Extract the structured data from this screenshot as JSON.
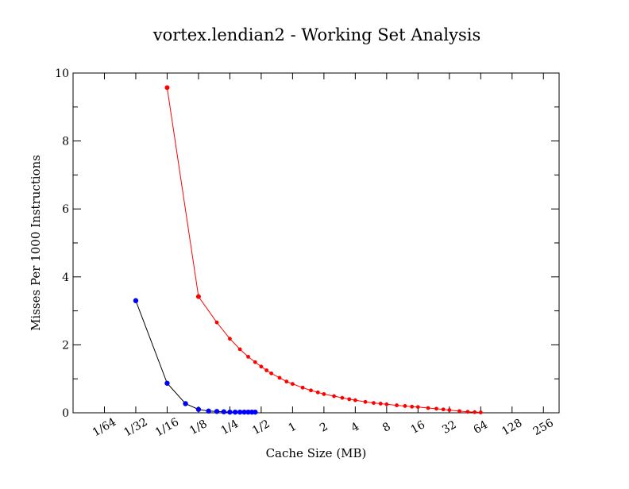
{
  "chart_data": {
    "type": "line",
    "title": "vortex.lendian2 - Working Set Analysis",
    "xlabel": "Cache Size (MB)",
    "ylabel": "Misses Per 1000 Instructions",
    "x_scale": "log2",
    "x_ticks": [
      "1/64",
      "1/32",
      "1/16",
      "1/8",
      "1/4",
      "1/2",
      "1",
      "2",
      "4",
      "8",
      "16",
      "32",
      "64",
      "128",
      "256"
    ],
    "x_tick_values": [
      0.015625,
      0.03125,
      0.0625,
      0.125,
      0.25,
      0.5,
      1,
      2,
      4,
      8,
      16,
      32,
      64,
      128,
      256
    ],
    "xlim": [
      0.0078125,
      362
    ],
    "y_ticks": [
      "0",
      "2",
      "4",
      "6",
      "8",
      "10"
    ],
    "ylim": [
      0,
      10
    ],
    "grid": false,
    "series": [
      {
        "color": "#ff0000",
        "x": [
          0.0625,
          0.125,
          0.1875,
          0.25,
          0.3125,
          0.375,
          0.4375,
          0.5,
          0.5625,
          0.625,
          0.75,
          0.875,
          1,
          1.25,
          1.5,
          1.75,
          2,
          2.5,
          3,
          3.5,
          4,
          5,
          6,
          7,
          8,
          10,
          12,
          14,
          16,
          20,
          24,
          28,
          32,
          40,
          48,
          56,
          64
        ],
        "y": [
          9.57,
          3.42,
          2.66,
          2.18,
          1.87,
          1.65,
          1.49,
          1.36,
          1.25,
          1.16,
          1.03,
          0.92,
          0.85,
          0.74,
          0.66,
          0.6,
          0.55,
          0.49,
          0.44,
          0.4,
          0.37,
          0.32,
          0.29,
          0.27,
          0.25,
          0.22,
          0.2,
          0.18,
          0.17,
          0.14,
          0.12,
          0.1,
          0.08,
          0.05,
          0.03,
          0.02,
          0.01
        ]
      },
      {
        "color": "#0000ff",
        "x": [
          0.03125,
          0.0625,
          0.09375,
          0.125,
          0.15625,
          0.1875,
          0.21875,
          0.25,
          0.28125,
          0.3125,
          0.34375,
          0.375,
          0.40625,
          0.4375
        ],
        "y": [
          3.3,
          0.87,
          0.27,
          0.1,
          0.05,
          0.04,
          0.03,
          0.02,
          0.02,
          0.02,
          0.02,
          0.02,
          0.02,
          0.02
        ]
      }
    ]
  }
}
